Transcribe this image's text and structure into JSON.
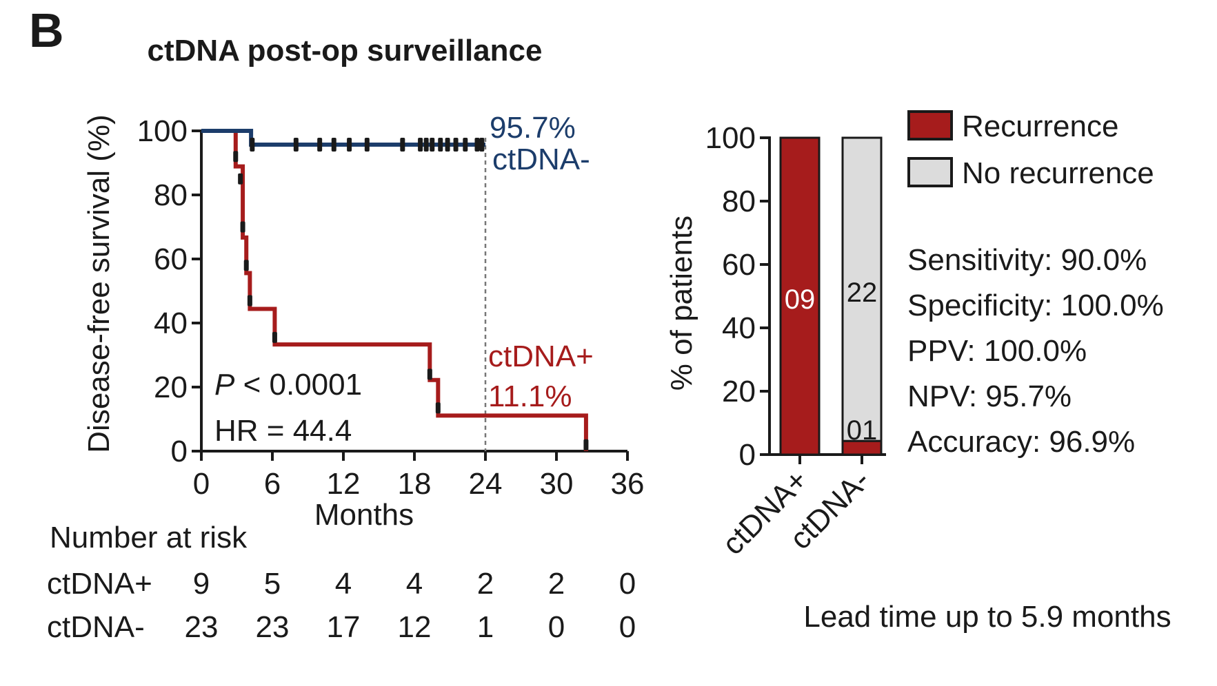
{
  "panel_label": "B",
  "chart_data": [
    {
      "type": "line",
      "subtype": "kaplan-meier",
      "title": "ctDNA post-op surveillance",
      "xlabel": "Months",
      "ylabel": "Disease-free survival (%)",
      "xlim": [
        0,
        36
      ],
      "ylim": [
        0,
        100
      ],
      "xticks": [
        0,
        6,
        12,
        18,
        24,
        30,
        36
      ],
      "yticks": [
        0,
        20,
        40,
        60,
        80,
        100
      ],
      "reference_line_x": 24,
      "colors": {
        "positive": "#a61c1c",
        "negative": "#1c3d6b"
      },
      "series": [
        {
          "name": "ctDNA-",
          "label_pct": "95.7%",
          "steps": [
            [
              0,
              100
            ],
            [
              4.2,
              100
            ],
            [
              4.2,
              95.7
            ],
            [
              24,
              95.7
            ]
          ],
          "censor_x": [
            4.3,
            8.0,
            10.0,
            11.2,
            12.5,
            14.0,
            17.0,
            18.5,
            19.0,
            19.5,
            20.2,
            20.8,
            21.5,
            22.3,
            23.3,
            23.7
          ]
        },
        {
          "name": "ctDNA+",
          "label_pct": "11.1%",
          "steps": [
            [
              0,
              100
            ],
            [
              2.9,
              100
            ],
            [
              2.9,
              88.9
            ],
            [
              3.5,
              88.9
            ],
            [
              3.5,
              66.7
            ],
            [
              3.8,
              66.7
            ],
            [
              3.8,
              55.6
            ],
            [
              4.1,
              55.6
            ],
            [
              4.1,
              44.4
            ],
            [
              6.2,
              44.4
            ],
            [
              6.2,
              33.3
            ],
            [
              19.3,
              33.3
            ],
            [
              19.3,
              22.2
            ],
            [
              20.0,
              22.2
            ],
            [
              20.0,
              11.1
            ],
            [
              32.5,
              11.1
            ],
            [
              32.5,
              0
            ]
          ],
          "censor_points": [
            [
              2.9,
              92
            ],
            [
              3.3,
              85
            ],
            [
              3.5,
              70
            ],
            [
              3.8,
              58
            ],
            [
              4.1,
              47
            ],
            [
              6.2,
              35.5
            ],
            [
              19.3,
              24
            ],
            [
              20.0,
              13.5
            ],
            [
              32.5,
              2
            ]
          ]
        }
      ],
      "annotations": {
        "p_symbol": "P",
        "p_value": " < 0.0001",
        "hr": "HR = 44.4"
      },
      "risk_table": {
        "title": "Number at risk",
        "rows": [
          {
            "name": "ctDNA+",
            "values": [
              "9",
              "5",
              "4",
              "4",
              "2",
              "2",
              "0"
            ]
          },
          {
            "name": "ctDNA-",
            "values": [
              "23",
              "23",
              "17",
              "12",
              "1",
              "0",
              "0"
            ]
          }
        ]
      }
    },
    {
      "type": "bar",
      "subtype": "stacked-percent",
      "ylabel": "% of patients",
      "ylim": [
        0,
        100
      ],
      "yticks": [
        0,
        20,
        40,
        60,
        80,
        100
      ],
      "categories": [
        "ctDNA+",
        "ctDNA-"
      ],
      "series": [
        {
          "name": "Recurrence",
          "color": "#a61c1c",
          "values": [
            100,
            4.3
          ],
          "counts": [
            "09",
            "01"
          ]
        },
        {
          "name": "No recurrence",
          "color": "#dcdcdc",
          "values": [
            0,
            95.7
          ],
          "counts": [
            "",
            "22"
          ]
        }
      ],
      "legend_position": "top-right",
      "stats": [
        "Sensitivity: 90.0%",
        "Specificity: 100.0%",
        "PPV: 100.0%",
        "NPV: 95.7%",
        "Accuracy: 96.9%"
      ],
      "footer": "Lead time up to 5.9 months"
    }
  ]
}
